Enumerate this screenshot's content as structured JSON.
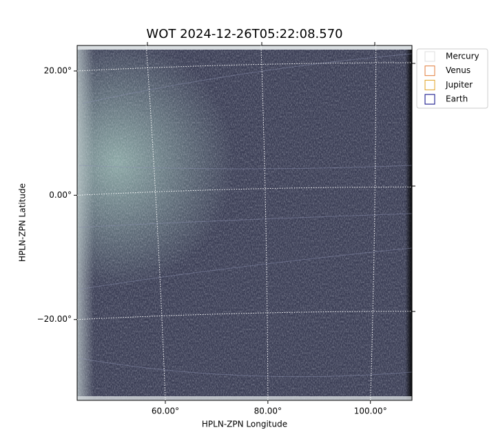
{
  "chart_data": {
    "type": "image",
    "title": "WOT 2024-12-26T05:22:08.570",
    "x_label": "HPLN-ZPN Longitude",
    "y_label": "HPLN-ZPN Latitude",
    "xlim": [
      42.8,
      108.1
    ],
    "ylim": [
      -33.0,
      24.1
    ],
    "xticks": [
      {
        "value": 60,
        "label": "60.00°"
      },
      {
        "value": 80,
        "label": "80.00°"
      },
      {
        "value": 100,
        "label": "100.00°"
      }
    ],
    "yticks": [
      {
        "value": -20,
        "label": "−20.00°"
      },
      {
        "value": 0,
        "label": "0.00°"
      },
      {
        "value": 20,
        "label": "20.00°"
      }
    ],
    "grid": true,
    "series": [
      {
        "name": "Mercury",
        "color": "#dddddd"
      },
      {
        "name": "Venus",
        "color": "#e07b39"
      },
      {
        "name": "Jupiter",
        "color": "#e0a020"
      },
      {
        "name": "Earth",
        "color": "#000080"
      }
    ]
  }
}
